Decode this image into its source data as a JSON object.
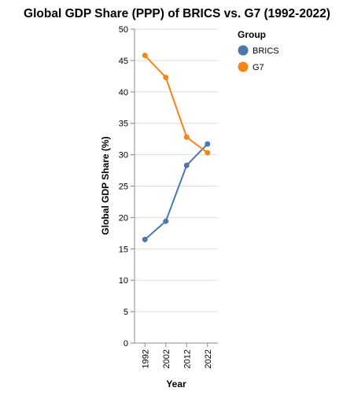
{
  "chart_data": {
    "type": "line",
    "title": "Global GDP Share (PPP) of BRICS vs. G7 (1992-2022)",
    "xlabel": "Year",
    "ylabel": "Global GDP Share (%)",
    "categories": [
      "1992",
      "2002",
      "2012",
      "2022"
    ],
    "ylim": [
      0,
      50
    ],
    "yticks": [
      0,
      5,
      10,
      15,
      20,
      25,
      30,
      35,
      40,
      45,
      50
    ],
    "grid": true,
    "legend": {
      "title": "Group",
      "placement": "right"
    },
    "series": [
      {
        "name": "BRICS",
        "color": "#4c78a8",
        "values": [
          16.5,
          19.4,
          28.3,
          31.7
        ]
      },
      {
        "name": "G7",
        "color": "#f58518",
        "values": [
          45.8,
          42.3,
          32.8,
          30.3
        ]
      }
    ]
  }
}
